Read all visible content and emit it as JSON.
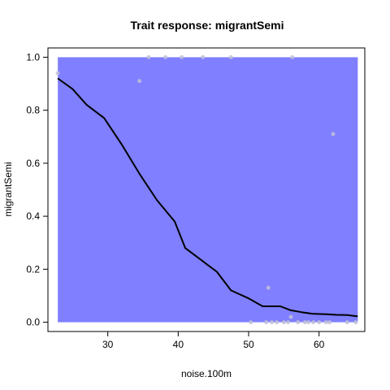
{
  "chart_data": {
    "type": "line",
    "title": "Trait response: migrantSemi",
    "xlabel": "noise.100m",
    "ylabel": "migrantSemi",
    "xlim": [
      21.5,
      66.5
    ],
    "ylim": [
      -0.035,
      1.035
    ],
    "x_ticks": [
      30,
      40,
      50,
      60
    ],
    "y_ticks": [
      0.0,
      0.2,
      0.4,
      0.6,
      0.8,
      1.0
    ],
    "x_tick_labels": [
      "30",
      "40",
      "50",
      "60"
    ],
    "y_tick_labels": [
      "0.0",
      "0.2",
      "0.4",
      "0.6",
      "0.8",
      "1.0"
    ],
    "grid": false,
    "band": {
      "color": "#7f7fff",
      "x": [
        22.9,
        65.5
      ],
      "lower": 0.0,
      "upper": 1.0
    },
    "series": [
      {
        "color": "#000000",
        "x": [
          22.9,
          25.0,
          27.0,
          29.5,
          32.0,
          34.5,
          37.0,
          39.5,
          41.0,
          43.5,
          45.5,
          47.5,
          50.0,
          52.0,
          53.0,
          54.5,
          56.0,
          57.5,
          59.0,
          61.0,
          62.5,
          64.0,
          65.5
        ],
        "y": [
          0.92,
          0.88,
          0.82,
          0.77,
          0.67,
          0.56,
          0.46,
          0.38,
          0.28,
          0.23,
          0.19,
          0.12,
          0.09,
          0.06,
          0.06,
          0.06,
          0.045,
          0.038,
          0.032,
          0.03,
          0.028,
          0.027,
          0.022
        ]
      }
    ],
    "points": {
      "color": "#c0c0d8",
      "x": [
        22.9,
        34.5,
        35.8,
        38.2,
        40.5,
        43.5,
        47.5,
        50.3,
        52.5,
        52.8,
        53.3,
        54.0,
        55.0,
        55.6,
        56.0,
        56.2,
        57.0,
        58.0,
        58.5,
        59.2,
        60.0,
        61.0,
        61.5,
        62.0,
        64.0,
        65.2
      ],
      "y": [
        0.94,
        0.91,
        1.0,
        1.0,
        1.0,
        1.0,
        1.0,
        0.0,
        0.0,
        0.13,
        0.0,
        0.0,
        0.0,
        0.0,
        0.02,
        1.0,
        0.0,
        0.0,
        0.0,
        0.0,
        0.0,
        0.0,
        0.0,
        0.71,
        0.0,
        0.0
      ]
    }
  }
}
